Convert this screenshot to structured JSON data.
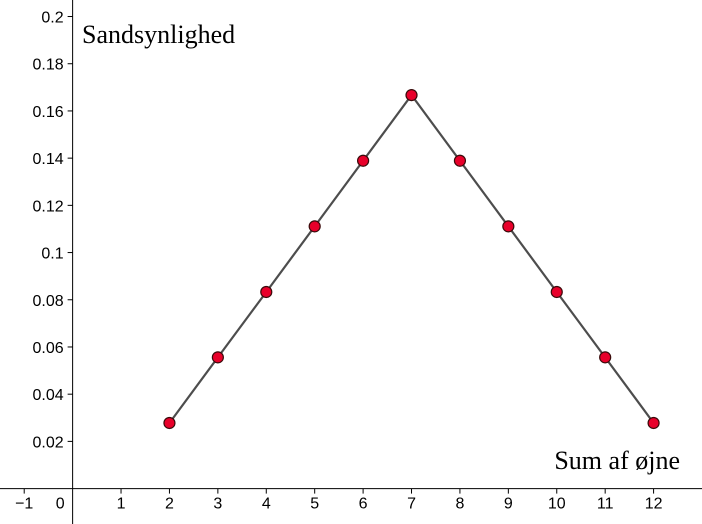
{
  "chart_data": {
    "type": "line",
    "title": "",
    "xlabel": "Sum af øjne",
    "ylabel": "Sandsynlighed",
    "xlim": [
      -1.5,
      13.0
    ],
    "ylim": [
      -0.015,
      0.207
    ],
    "x_ticks": [
      -1,
      0,
      1,
      2,
      3,
      4,
      5,
      6,
      7,
      8,
      9,
      10,
      11,
      12
    ],
    "x_tick_labels": [
      "−1",
      "0",
      "1",
      "2",
      "3",
      "4",
      "5",
      "6",
      "7",
      "8",
      "9",
      "10",
      "11",
      "12"
    ],
    "y_ticks": [
      0.02,
      0.04,
      0.06,
      0.08,
      0.1,
      0.12,
      0.14,
      0.16,
      0.18,
      0.2
    ],
    "y_tick_labels": [
      "0.02",
      "0.04",
      "0.06",
      "0.08",
      "0.1",
      "0.12",
      "0.14",
      "0.16",
      "0.18",
      "0.2"
    ],
    "grid": false,
    "series": [
      {
        "x": [
          2,
          3,
          4,
          5,
          6,
          7,
          8,
          9,
          10,
          11,
          12
        ],
        "y": [
          0.0278,
          0.0556,
          0.0833,
          0.1111,
          0.1389,
          0.1667,
          0.1389,
          0.1111,
          0.0833,
          0.0556,
          0.0278
        ],
        "line_color": "#4d4d4d",
        "marker_color": "#e8002a"
      }
    ]
  }
}
